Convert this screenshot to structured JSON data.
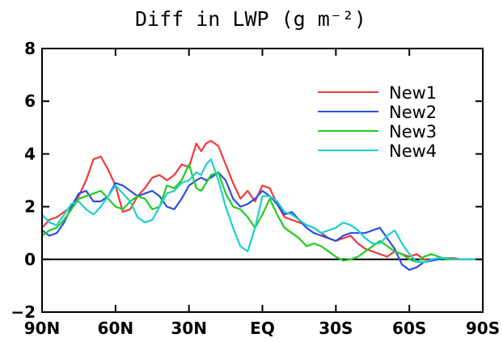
{
  "chart_data": {
    "type": "line",
    "title": "Diff in LWP (g m⁻²)",
    "xlabel": "",
    "ylabel": "",
    "xlim": [
      90,
      -90
    ],
    "ylim": [
      -2,
      8
    ],
    "x_ticks": [
      {
        "value": 90,
        "label": "90N"
      },
      {
        "value": 60,
        "label": "60N"
      },
      {
        "value": 30,
        "label": "30N"
      },
      {
        "value": 0,
        "label": "EQ"
      },
      {
        "value": -30,
        "label": "30S"
      },
      {
        "value": -60,
        "label": "60S"
      },
      {
        "value": -90,
        "label": "90S"
      }
    ],
    "y_ticks": [
      {
        "value": -2,
        "label": "−2"
      },
      {
        "value": 0,
        "label": "0"
      },
      {
        "value": 2,
        "label": "2"
      },
      {
        "value": 4,
        "label": "4"
      },
      {
        "value": 6,
        "label": "6"
      },
      {
        "value": 8,
        "label": "8"
      }
    ],
    "reference_line_y": 0,
    "legend_position": "top-right",
    "series": [
      {
        "name": "New1",
        "color": "#ee3b3b",
        "x": [
          90,
          87,
          84,
          81,
          78,
          75,
          72,
          69,
          66,
          63,
          60,
          57,
          54,
          51,
          48,
          45,
          42,
          39,
          36,
          33,
          30,
          27,
          25,
          23,
          21,
          18,
          15,
          12,
          9,
          6,
          3,
          0,
          -3,
          -6,
          -9,
          -12,
          -15,
          -18,
          -21,
          -24,
          -27,
          -30,
          -33,
          -36,
          -39,
          -42,
          -45,
          -48,
          -51,
          -54,
          -57,
          -60,
          -63,
          -66,
          -69,
          -72,
          -75,
          -78,
          -81,
          -84,
          -87,
          -90
        ],
        "y": [
          1.2,
          1.5,
          1.6,
          1.8,
          2.0,
          2.4,
          3.0,
          3.8,
          3.9,
          3.4,
          2.8,
          1.8,
          1.9,
          2.4,
          2.7,
          3.1,
          3.2,
          3.0,
          3.2,
          3.6,
          3.5,
          4.4,
          4.1,
          4.4,
          4.5,
          4.3,
          3.6,
          2.9,
          2.3,
          2.6,
          2.2,
          2.8,
          2.7,
          2.1,
          1.6,
          1.5,
          1.4,
          1.3,
          1.2,
          1.0,
          0.8,
          0.7,
          0.8,
          0.9,
          0.6,
          0.4,
          0.3,
          0.2,
          0.1,
          0.3,
          0.2,
          0.1,
          0.2,
          0.0,
          -0.05,
          0.05,
          0.05,
          0.05,
          0.0,
          0.0,
          0.0,
          0.0
        ]
      },
      {
        "name": "New2",
        "color": "#2b4ee8",
        "x": [
          90,
          87,
          84,
          81,
          78,
          75,
          72,
          69,
          66,
          63,
          60,
          57,
          54,
          51,
          48,
          45,
          42,
          39,
          36,
          33,
          30,
          27,
          25,
          23,
          21,
          18,
          15,
          12,
          9,
          6,
          3,
          0,
          -3,
          -6,
          -9,
          -12,
          -15,
          -18,
          -21,
          -24,
          -27,
          -30,
          -33,
          -36,
          -39,
          -42,
          -45,
          -48,
          -51,
          -54,
          -57,
          -60,
          -63,
          -66,
          -69,
          -72,
          -75,
          -78,
          -81,
          -84,
          -87,
          -90
        ],
        "y": [
          1.1,
          0.9,
          1.0,
          1.4,
          2.0,
          2.5,
          2.6,
          2.2,
          2.2,
          2.4,
          2.9,
          2.8,
          2.6,
          2.4,
          2.5,
          2.6,
          2.4,
          2.0,
          1.9,
          2.3,
          2.8,
          3.0,
          3.1,
          3.0,
          3.1,
          3.3,
          3.0,
          2.3,
          2.0,
          2.1,
          2.3,
          2.6,
          2.4,
          2.1,
          1.7,
          1.8,
          1.5,
          1.2,
          1.0,
          0.9,
          0.8,
          0.7,
          0.9,
          1.0,
          1.0,
          1.0,
          1.1,
          1.2,
          0.8,
          0.4,
          -0.2,
          -0.4,
          -0.3,
          -0.1,
          -0.05,
          0.0,
          0.05,
          0.0,
          0.0,
          0.0,
          0.0,
          0.0
        ]
      },
      {
        "name": "New3",
        "color": "#22cc22",
        "x": [
          90,
          87,
          84,
          81,
          78,
          75,
          72,
          69,
          66,
          63,
          60,
          57,
          54,
          51,
          48,
          45,
          42,
          39,
          36,
          33,
          30,
          27,
          25,
          23,
          21,
          18,
          15,
          12,
          9,
          6,
          3,
          0,
          -3,
          -6,
          -9,
          -12,
          -15,
          -18,
          -21,
          -24,
          -27,
          -30,
          -33,
          -36,
          -39,
          -42,
          -45,
          -48,
          -51,
          -54,
          -57,
          -60,
          -63,
          -66,
          -69,
          -72,
          -75,
          -78,
          -81,
          -84,
          -87,
          -90
        ],
        "y": [
          0.9,
          1.1,
          1.2,
          1.5,
          1.9,
          2.3,
          2.4,
          2.5,
          2.6,
          2.3,
          2.0,
          1.9,
          2.2,
          2.4,
          2.3,
          1.9,
          2.0,
          2.8,
          2.7,
          3.0,
          3.6,
          2.7,
          2.6,
          2.9,
          3.2,
          3.3,
          2.5,
          2.0,
          1.9,
          1.6,
          1.2,
          1.7,
          2.3,
          1.7,
          1.2,
          1.0,
          0.8,
          0.5,
          0.6,
          0.5,
          0.3,
          0.1,
          -0.05,
          0.0,
          0.1,
          0.3,
          0.5,
          0.7,
          0.5,
          0.3,
          0.2,
          0.0,
          -0.1,
          0.1,
          0.2,
          0.1,
          0.0,
          0.0,
          0.0,
          0.0,
          0.0,
          0.0
        ]
      },
      {
        "name": "New4",
        "color": "#1ecfcf",
        "x": [
          90,
          87,
          84,
          81,
          78,
          75,
          72,
          69,
          66,
          63,
          60,
          57,
          54,
          51,
          48,
          45,
          42,
          39,
          36,
          33,
          30,
          27,
          25,
          23,
          21,
          18,
          15,
          12,
          9,
          6,
          3,
          0,
          -3,
          -6,
          -9,
          -12,
          -15,
          -18,
          -21,
          -24,
          -27,
          -30,
          -33,
          -36,
          -39,
          -42,
          -45,
          -48,
          -51,
          -54,
          -57,
          -60,
          -63,
          -66,
          -69,
          -72,
          -75,
          -78,
          -81,
          -84,
          -87,
          -90
        ],
        "y": [
          1.7,
          1.4,
          1.3,
          1.7,
          2.1,
          2.2,
          1.9,
          1.7,
          2.0,
          2.4,
          2.8,
          2.5,
          2.2,
          1.6,
          1.4,
          1.5,
          2.0,
          2.5,
          2.6,
          2.9,
          3.0,
          3.3,
          3.2,
          3.6,
          3.8,
          3.0,
          2.0,
          1.2,
          0.5,
          0.3,
          1.2,
          2.4,
          2.4,
          2.2,
          1.8,
          1.7,
          1.5,
          1.3,
          1.2,
          1.0,
          1.1,
          1.2,
          1.4,
          1.3,
          1.1,
          0.8,
          0.6,
          0.6,
          0.9,
          1.1,
          0.6,
          0.2,
          -0.1,
          -0.1,
          0.0,
          0.05,
          0.05,
          0.0,
          0.0,
          0.0,
          0.0,
          0.0
        ]
      }
    ]
  }
}
